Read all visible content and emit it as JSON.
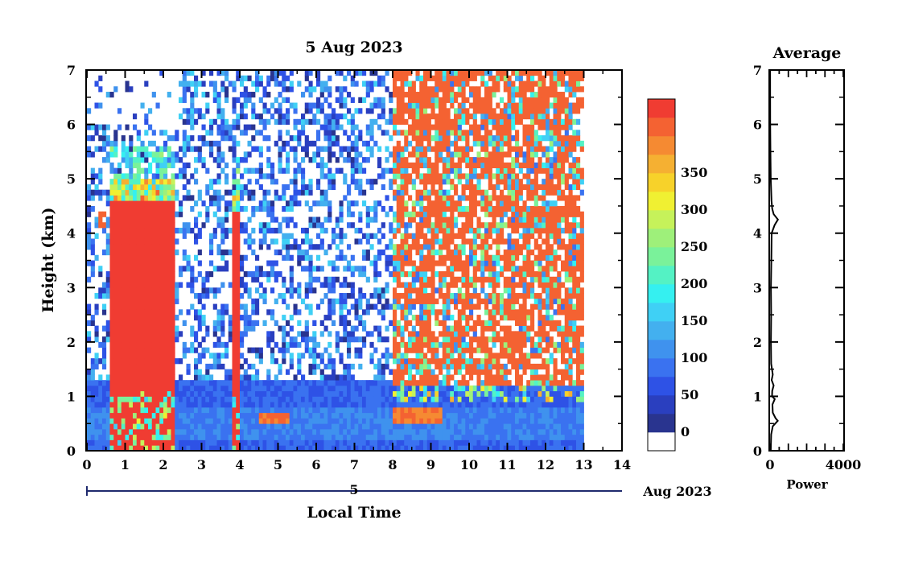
{
  "chart_data": {
    "type": "heatmap",
    "title": "5 Aug 2023",
    "xlabel": "Local Time",
    "ylabel": "Height (km)",
    "xlim": [
      0,
      14
    ],
    "ylim": [
      0,
      7
    ],
    "xticks": [
      "0",
      "1",
      "2",
      "3",
      "4",
      "5",
      "6",
      "7",
      "8",
      "9",
      "10",
      "11",
      "12",
      "13",
      "14"
    ],
    "yticks": [
      "0",
      "1",
      "2",
      "3",
      "4",
      "5",
      "6",
      "7"
    ],
    "date_axis": {
      "day": "5",
      "month_year": "Aug 2023"
    },
    "data_end_hour": 13,
    "colorbar": {
      "ticks": [
        "0",
        "50",
        "100",
        "150",
        "200",
        "250",
        "300",
        "350"
      ],
      "range": [
        0,
        380
      ],
      "colors": [
        "#ffffff",
        "#29348f",
        "#2a3fbf",
        "#2e52e6",
        "#3a72f0",
        "#3f92ee",
        "#43b0ef",
        "#3fd0f5",
        "#35f0f0",
        "#54f2c4",
        "#7af29a",
        "#9ef07a",
        "#c6f25a",
        "#f0f032",
        "#f7d22a",
        "#f5b032",
        "#f58a32",
        "#f46232",
        "#f03c32"
      ]
    },
    "features": [
      {
        "name": "rain",
        "t_start": 0.6,
        "t_end": 2.3,
        "h_top": 5.0,
        "level": 380
      },
      {
        "name": "rain",
        "t_start": 3.8,
        "t_end": 4.0,
        "h_top": 4.8,
        "level": 380
      },
      {
        "name": "noise",
        "t_start": 8.0,
        "t_end": 13.0,
        "h_top": 7.0,
        "level": 350
      },
      {
        "name": "layer",
        "t_start": 4.5,
        "t_end": 5.3,
        "h": 0.6,
        "level": 330
      },
      {
        "name": "layer",
        "t_start": 8.0,
        "t_end": 9.3,
        "h": 0.65,
        "level": 330
      },
      {
        "name": "cloud",
        "t_start": 8.6,
        "t_end": 9.2,
        "h": 1.3,
        "level": 360
      },
      {
        "name": "cloud",
        "t_start": 12.0,
        "t_end": 12.9,
        "h": 4.4,
        "level": 360
      },
      {
        "name": "cloud",
        "t_start": 0.3,
        "t_end": 0.5,
        "h": 4.25,
        "level": 360
      }
    ],
    "average_panel": {
      "title": "Average",
      "xlabel": "Power",
      "xlim": [
        0,
        4000
      ],
      "xticks": [
        "0",
        "4000"
      ],
      "ylim": [
        0,
        7
      ],
      "yticks": [
        "0",
        "1",
        "2",
        "3",
        "4",
        "5",
        "6",
        "7"
      ],
      "profile": [
        [
          0.0,
          40
        ],
        [
          0.3,
          60
        ],
        [
          0.45,
          150
        ],
        [
          0.55,
          420
        ],
        [
          0.6,
          300
        ],
        [
          0.7,
          150
        ],
        [
          0.85,
          130
        ],
        [
          0.95,
          260
        ],
        [
          1.0,
          110
        ],
        [
          1.1,
          120
        ],
        [
          1.2,
          200
        ],
        [
          1.3,
          90
        ],
        [
          1.4,
          150
        ],
        [
          1.6,
          60
        ],
        [
          2.0,
          50
        ],
        [
          2.5,
          60
        ],
        [
          3.0,
          50
        ],
        [
          3.5,
          70
        ],
        [
          4.0,
          90
        ],
        [
          4.15,
          250
        ],
        [
          4.25,
          430
        ],
        [
          4.35,
          200
        ],
        [
          4.45,
          120
        ],
        [
          4.6,
          80
        ],
        [
          5.0,
          40
        ],
        [
          5.5,
          20
        ],
        [
          6.0,
          10
        ],
        [
          7.0,
          5
        ]
      ]
    }
  }
}
